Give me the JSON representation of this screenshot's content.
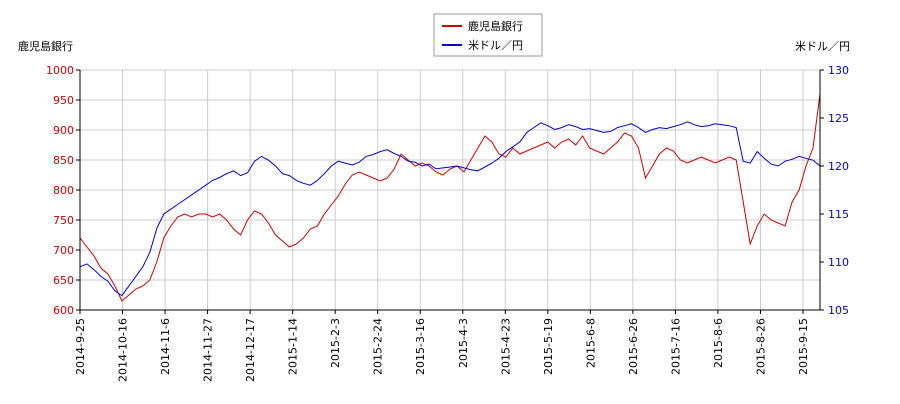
{
  "chart_data": {
    "type": "line",
    "left_axis_title": "鹿児島銀行",
    "right_axis_title": "米ドル／円",
    "legend": [
      "鹿児島銀行",
      "米ドル／円"
    ],
    "legend_position": "top-center",
    "grid": true,
    "x_tick_labels": [
      "2014-9-25",
      "2014-10-16",
      "2014-11-6",
      "2014-11-27",
      "2014-12-17",
      "2015-1-14",
      "2015-2-3",
      "2015-2-24",
      "2015-3-16",
      "2015-4-3",
      "2015-4-23",
      "2015-5-19",
      "2015-6-8",
      "2015-6-26",
      "2015-7-16",
      "2015-8-6",
      "2015-8-26",
      "2015-9-15"
    ],
    "y_left": {
      "min": 600,
      "max": 1000,
      "ticks": [
        "600",
        "650",
        "700",
        "750",
        "800",
        "850",
        "900",
        "950",
        "1000"
      ],
      "color": "#cc0000"
    },
    "y_right": {
      "min": 105,
      "max": 130,
      "ticks": [
        "105",
        "110",
        "115",
        "120",
        "125",
        "130"
      ],
      "color": "#0000cc"
    },
    "series": [
      {
        "name": "鹿児島銀行",
        "axis": "left",
        "color": "#cc0000",
        "values": [
          720,
          705,
          690,
          670,
          660,
          640,
          615,
          625,
          635,
          640,
          650,
          680,
          720,
          740,
          755,
          760,
          755,
          760,
          760,
          755,
          760,
          750,
          735,
          725,
          750,
          765,
          760,
          745,
          725,
          715,
          705,
          710,
          720,
          735,
          740,
          760,
          775,
          790,
          810,
          825,
          830,
          825,
          820,
          815,
          820,
          835,
          860,
          850,
          840,
          845,
          840,
          830,
          825,
          835,
          840,
          830,
          850,
          870,
          890,
          880,
          860,
          855,
          870,
          860,
          865,
          870,
          875,
          880,
          870,
          880,
          885,
          875,
          890,
          870,
          865,
          860,
          870,
          880,
          895,
          890,
          870,
          820,
          840,
          860,
          870,
          865,
          850,
          845,
          850,
          855,
          850,
          845,
          850,
          855,
          850,
          780,
          710,
          740,
          760,
          750,
          745,
          740,
          780,
          800,
          840,
          870,
          960
        ]
      },
      {
        "name": "米ドル／円",
        "axis": "right",
        "color": "#0000cc",
        "values": [
          109.5,
          109.8,
          109.2,
          108.5,
          108.0,
          107.0,
          106.5,
          107.5,
          108.5,
          109.5,
          111.0,
          113.5,
          115.0,
          115.5,
          116.0,
          116.5,
          117.0,
          117.5,
          118.0,
          118.5,
          118.8,
          119.2,
          119.5,
          119.0,
          119.3,
          120.5,
          121.0,
          120.6,
          120.0,
          119.2,
          119.0,
          118.5,
          118.2,
          118.0,
          118.5,
          119.2,
          120.0,
          120.5,
          120.3,
          120.1,
          120.4,
          121.0,
          121.2,
          121.5,
          121.7,
          121.3,
          121.0,
          120.5,
          120.4,
          120.0,
          120.2,
          119.7,
          119.8,
          119.9,
          120.0,
          119.8,
          119.6,
          119.5,
          119.9,
          120.3,
          120.8,
          121.5,
          122.0,
          122.5,
          123.5,
          124.0,
          124.5,
          124.2,
          123.8,
          124.0,
          124.3,
          124.1,
          123.8,
          123.9,
          123.7,
          123.5,
          123.6,
          124.0,
          124.2,
          124.4,
          124.0,
          123.5,
          123.8,
          124.0,
          123.9,
          124.1,
          124.3,
          124.6,
          124.3,
          124.1,
          124.2,
          124.4,
          124.3,
          124.2,
          124.0,
          120.5,
          120.3,
          121.5,
          120.8,
          120.2,
          120.0,
          120.5,
          120.7,
          121.0,
          120.8,
          120.6,
          120.0
        ]
      }
    ]
  }
}
